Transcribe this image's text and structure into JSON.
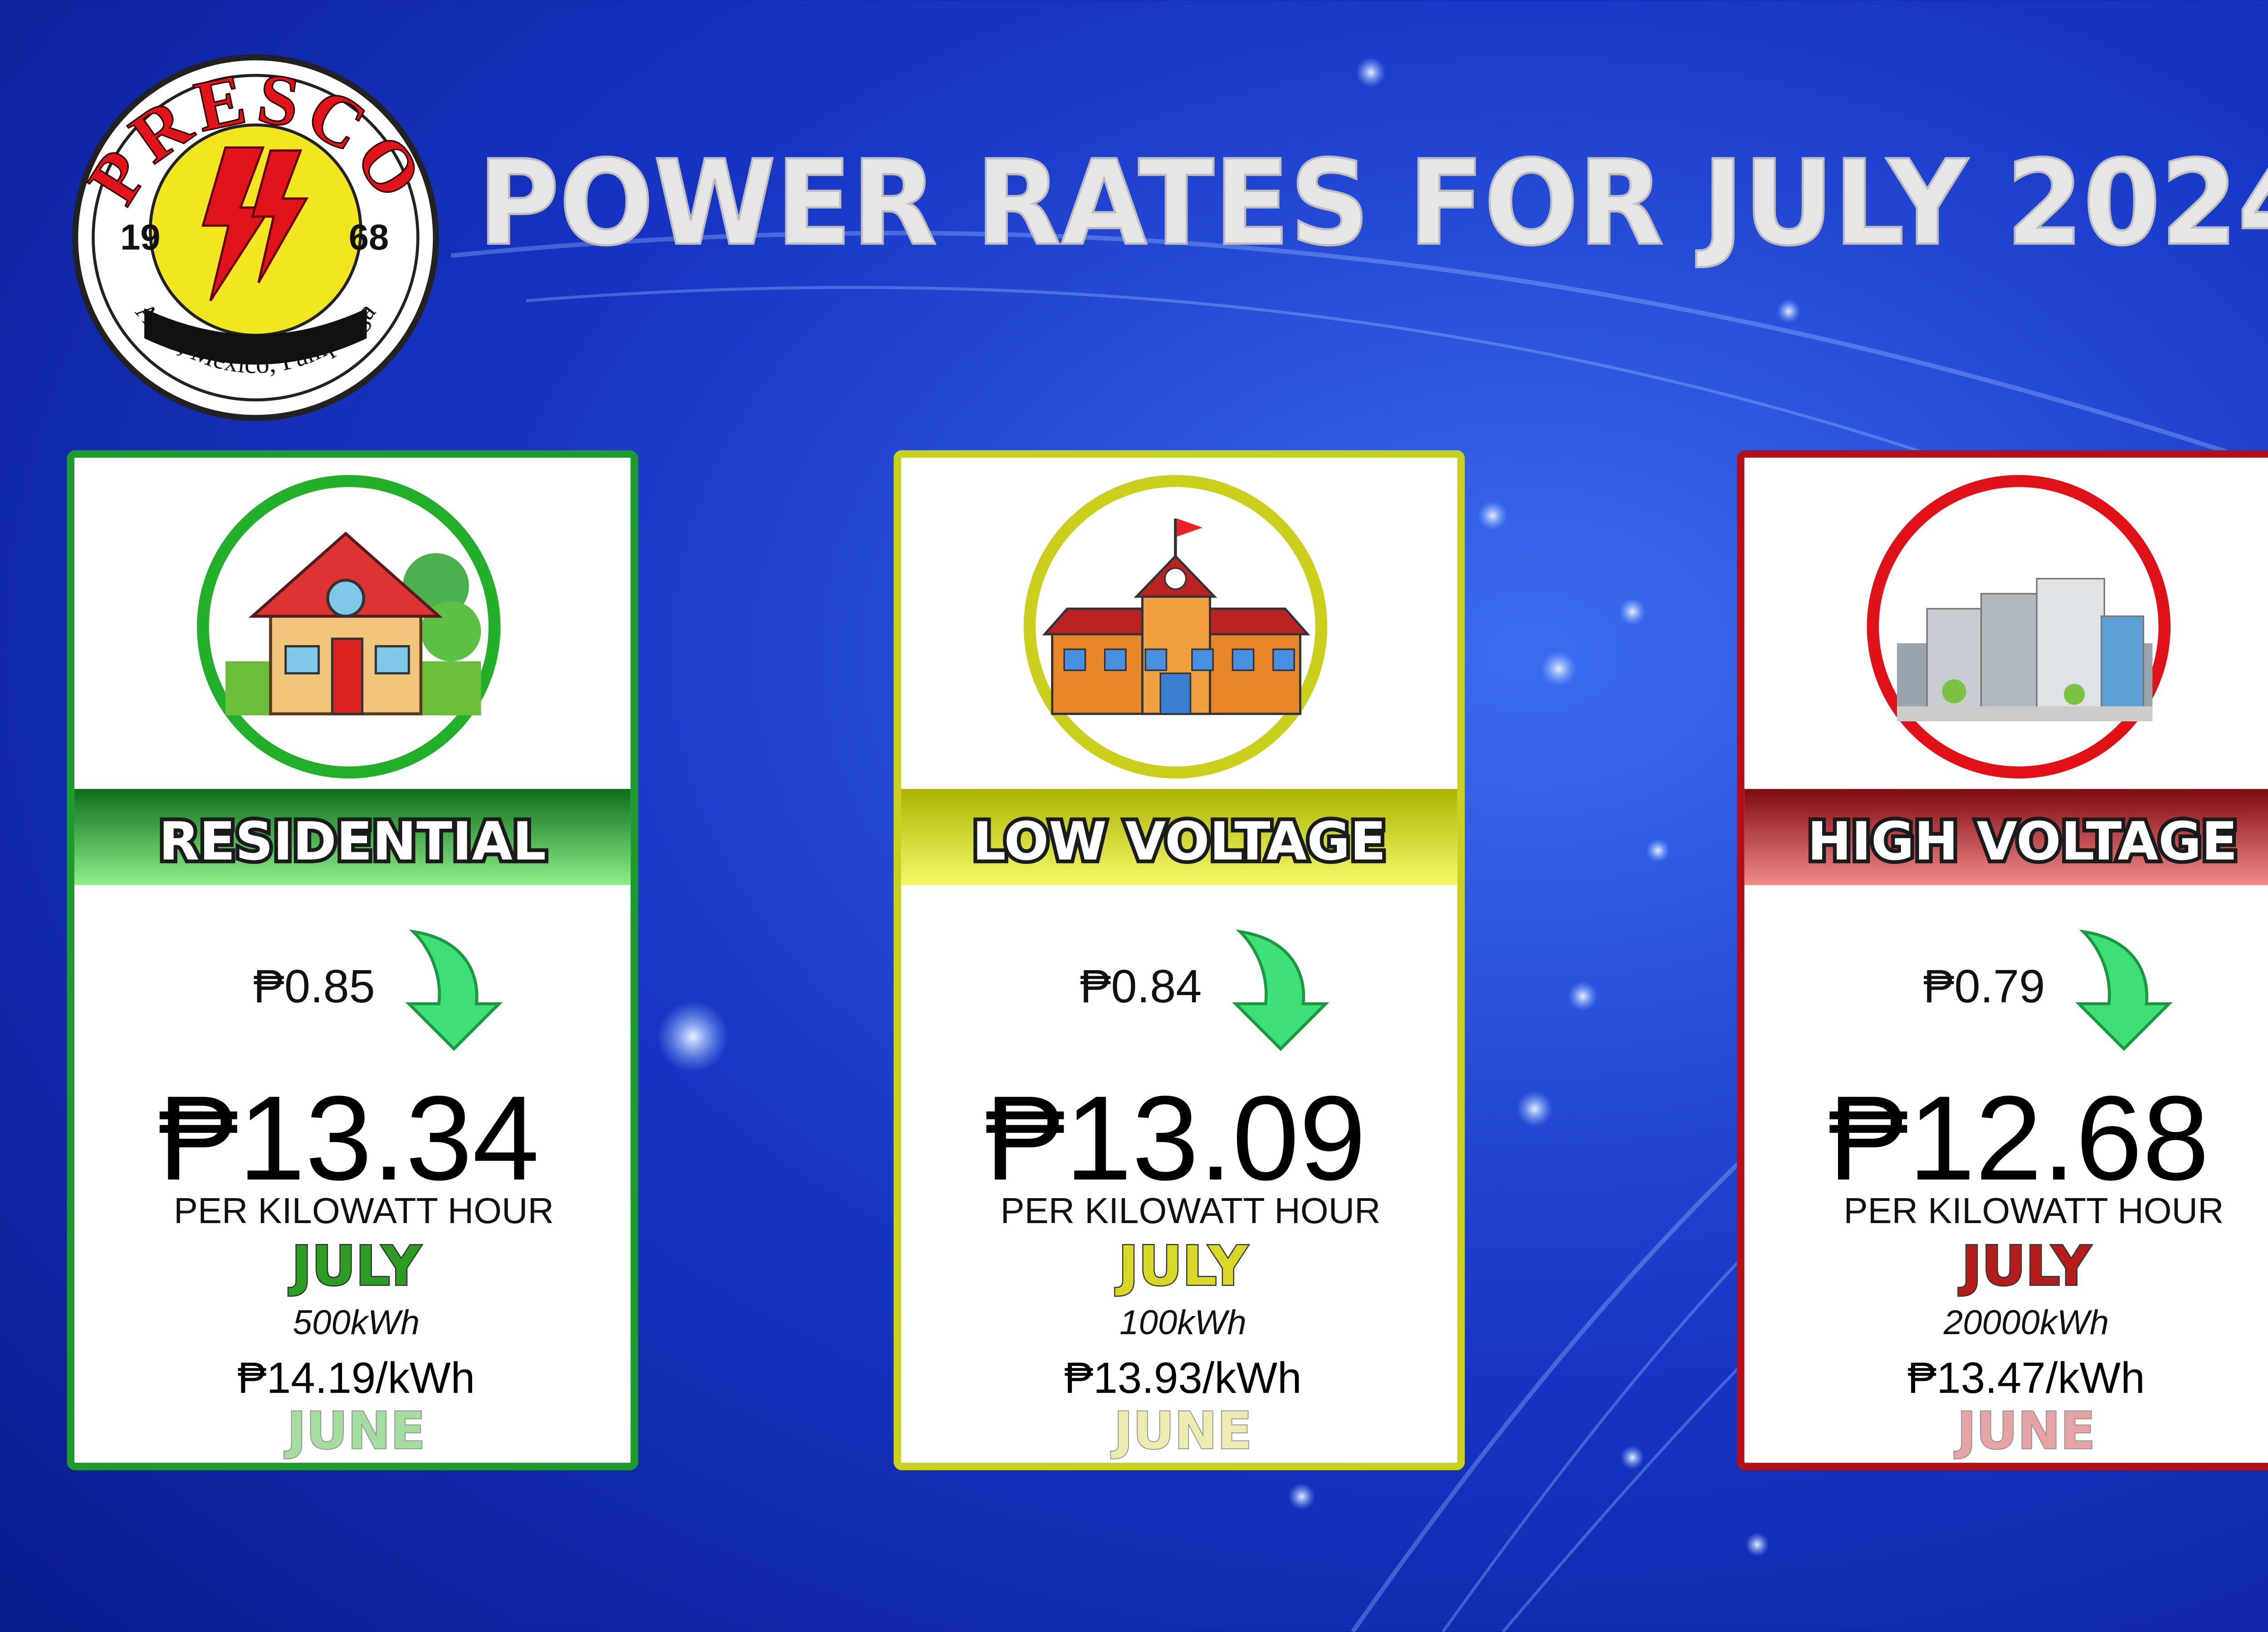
{
  "header": {
    "title": "POWER RATES FOR JULY 2024",
    "logo": {
      "name": "PRESCO",
      "year_left": "19",
      "year_right": "68",
      "address": "Anao, Mexico, Pampanga"
    }
  },
  "cards": [
    {
      "category": "RESIDENTIAL",
      "decrease": "₱0.85",
      "rate": "₱13.34",
      "unit": "PER KILOWATT HOUR",
      "month": "JULY",
      "consumption": "500kWh",
      "previous_rate": "₱14.19/kWh",
      "previous_month": "JUNE"
    },
    {
      "category": "LOW VOLTAGE",
      "decrease": "₱0.84",
      "rate": "₱13.09",
      "unit": "PER KILOWATT HOUR",
      "month": "JULY",
      "consumption": "100kWh",
      "previous_rate": "₱13.93/kWh",
      "previous_month": "JUNE"
    },
    {
      "category": "HIGH VOLTAGE",
      "decrease": "₱0.79",
      "rate": "₱12.68",
      "unit": "PER KILOWATT HOUR",
      "month": "JULY",
      "consumption": "20000kWh",
      "previous_rate": "₱13.47/kWh",
      "previous_month": "JUNE"
    }
  ]
}
